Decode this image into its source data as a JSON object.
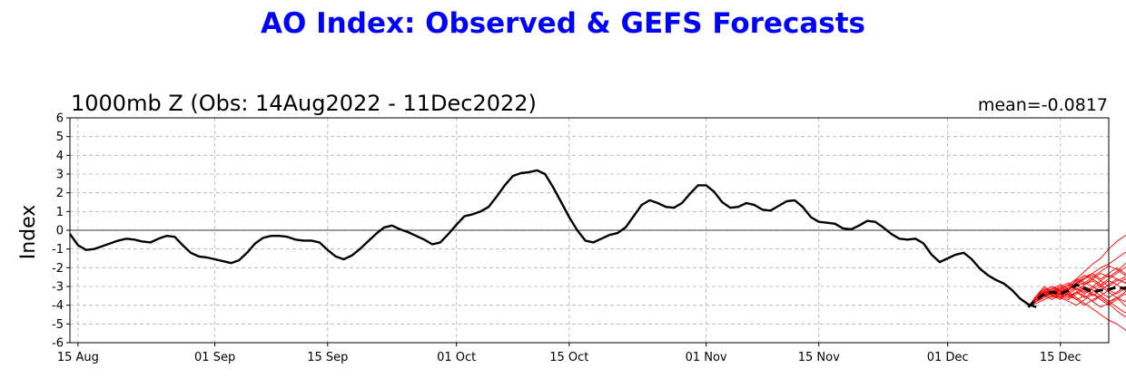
{
  "title": "AO Index: Observed & GEFS Forecasts",
  "chart_data": {
    "type": "line",
    "subtitle": "1000mb Z (Obs: 14Aug2022 - 11Dec2022)",
    "mean_label": "mean=-0.0817",
    "ylabel": "Index",
    "xlabel": "",
    "xlim": [
      "2022-08-14",
      "2022-12-21"
    ],
    "ylim": [
      -6,
      6
    ],
    "yticks": [
      6,
      5,
      4,
      3,
      2,
      1,
      0,
      -1,
      -2,
      -3,
      -4,
      -5,
      -6
    ],
    "xticks": [
      {
        "date": "2022-08-15",
        "label": "15 Aug"
      },
      {
        "date": "2022-09-01",
        "label": "01 Sep"
      },
      {
        "date": "2022-09-15",
        "label": "15 Sep"
      },
      {
        "date": "2022-10-01",
        "label": "01 Oct"
      },
      {
        "date": "2022-10-15",
        "label": "15 Oct"
      },
      {
        "date": "2022-11-01",
        "label": "01 Nov"
      },
      {
        "date": "2022-11-15",
        "label": "15 Nov"
      },
      {
        "date": "2022-12-01",
        "label": "01 Dec"
      },
      {
        "date": "2022-12-15",
        "label": "15 Dec"
      }
    ],
    "grid": true,
    "zero_line": true,
    "colors": {
      "observed": "#000000",
      "members": "#ff0000",
      "mean": "#000000",
      "title": "#0000ff"
    },
    "observed": {
      "start": "2022-08-14",
      "values": [
        -0.2,
        -0.8,
        -1.05,
        -1.0,
        -0.85,
        -0.7,
        -0.55,
        -0.45,
        -0.5,
        -0.6,
        -0.65,
        -0.45,
        -0.3,
        -0.35,
        -0.8,
        -1.2,
        -1.4,
        -1.45,
        -1.55,
        -1.65,
        -1.75,
        -1.6,
        -1.2,
        -0.7,
        -0.4,
        -0.3,
        -0.3,
        -0.35,
        -0.5,
        -0.55,
        -0.55,
        -0.65,
        -1.05,
        -1.4,
        -1.55,
        -1.35,
        -1.0,
        -0.6,
        -0.2,
        0.15,
        0.25,
        0.05,
        -0.1,
        -0.3,
        -0.5,
        -0.75,
        -0.65,
        -0.2,
        0.3,
        0.75,
        0.85,
        1.0,
        1.25,
        1.8,
        2.4,
        2.9,
        3.05,
        3.1,
        3.2,
        3.0,
        2.3,
        1.5,
        0.7,
        0.0,
        -0.55,
        -0.65,
        -0.45,
        -0.25,
        -0.15,
        0.15,
        0.75,
        1.35,
        1.6,
        1.45,
        1.25,
        1.2,
        1.45,
        1.95,
        2.4,
        2.4,
        2.05,
        1.5,
        1.2,
        1.25,
        1.45,
        1.35,
        1.1,
        1.05,
        1.3,
        1.55,
        1.6,
        1.25,
        0.7,
        0.45,
        0.4,
        0.35,
        0.1,
        0.05,
        0.25,
        0.5,
        0.45,
        0.15,
        -0.2,
        -0.45,
        -0.5,
        -0.45,
        -0.7,
        -1.3,
        -1.7,
        -1.5,
        -1.3,
        -1.2,
        -1.55,
        -2.05,
        -2.4,
        -2.65,
        -2.85,
        -3.2,
        -3.65,
        -3.95,
        -4.1
      ]
    },
    "forecast": {
      "start": "2022-12-11",
      "mean": [
        -4.1,
        -3.7,
        -3.4,
        -3.3,
        -3.4,
        -3.2,
        -2.9,
        -3.1,
        -3.3,
        -3.2,
        -3.15,
        -3.05,
        -3.1,
        -3.0,
        -2.85,
        -2.7,
        -2.4
      ],
      "members": [
        [
          -4.1,
          -3.5,
          -3.0,
          -3.3,
          -3.6,
          -3.2,
          -2.6,
          -2.2,
          -1.8,
          -1.5,
          -1.0,
          -0.6,
          -0.3,
          0.0,
          0.3,
          0.1,
          -0.5
        ],
        [
          -4.1,
          -3.8,
          -3.6,
          -3.2,
          -3.0,
          -3.3,
          -3.6,
          -3.9,
          -4.2,
          -4.5,
          -4.8,
          -5.0,
          -5.3,
          -5.6,
          -5.9,
          -5.7,
          -5.5
        ],
        [
          -4.1,
          -3.6,
          -3.2,
          -3.0,
          -3.3,
          -3.1,
          -2.8,
          -2.5,
          -2.3,
          -2.0,
          -1.8,
          -1.5,
          -1.2,
          -1.0,
          -0.7,
          -0.3,
          0.0
        ],
        [
          -4.1,
          -3.9,
          -3.7,
          -3.5,
          -3.6,
          -3.8,
          -4.0,
          -3.7,
          -3.4,
          -3.6,
          -3.9,
          -4.3,
          -4.6,
          -4.5,
          -4.9,
          -5.3,
          -5.6
        ],
        [
          -4.1,
          -3.6,
          -3.3,
          -3.1,
          -3.3,
          -3.0,
          -2.7,
          -2.9,
          -2.6,
          -2.3,
          -2.5,
          -2.2,
          -1.8,
          -1.5,
          -1.1,
          -0.8,
          -0.4
        ],
        [
          -4.1,
          -3.7,
          -3.5,
          -3.4,
          -3.2,
          -3.5,
          -3.3,
          -3.0,
          -3.2,
          -3.5,
          -3.8,
          -3.6,
          -4.0,
          -4.4,
          -4.2,
          -4.6,
          -4.9
        ],
        [
          -4.1,
          -3.6,
          -3.2,
          -3.5,
          -3.7,
          -3.3,
          -3.0,
          -2.8,
          -3.0,
          -2.7,
          -2.4,
          -2.6,
          -2.8,
          -2.5,
          -2.2,
          -1.9,
          -2.1
        ],
        [
          -4.1,
          -3.8,
          -3.5,
          -3.2,
          -3.4,
          -3.6,
          -3.3,
          -3.5,
          -3.8,
          -3.5,
          -3.2,
          -3.4,
          -3.1,
          -3.3,
          -3.6,
          -3.9,
          -4.1
        ],
        [
          -4.1,
          -3.5,
          -3.1,
          -3.3,
          -3.0,
          -2.8,
          -3.1,
          -3.4,
          -3.1,
          -2.9,
          -3.2,
          -2.9,
          -2.6,
          -2.9,
          -3.2,
          -2.8,
          -2.5
        ],
        [
          -4.1,
          -3.7,
          -3.4,
          -3.6,
          -3.3,
          -3.0,
          -2.7,
          -2.4,
          -2.6,
          -2.9,
          -2.6,
          -2.3,
          -2.0,
          -1.7,
          -1.4,
          -1.0,
          -0.7
        ],
        [
          -4.1,
          -3.8,
          -3.6,
          -3.3,
          -3.1,
          -3.4,
          -3.7,
          -3.5,
          -3.8,
          -4.1,
          -3.9,
          -3.6,
          -3.8,
          -3.5,
          -3.3,
          -3.6,
          -3.3
        ],
        [
          -4.1,
          -3.6,
          -3.3,
          -3.4,
          -3.1,
          -2.9,
          -2.6,
          -2.8,
          -2.5,
          -2.2,
          -1.9,
          -2.1,
          -2.4,
          -2.1,
          -1.8,
          -1.5,
          -1.2
        ],
        [
          -4.1,
          -3.7,
          -3.5,
          -3.2,
          -3.5,
          -3.7,
          -3.4,
          -3.1,
          -3.4,
          -3.7,
          -4.0,
          -3.7,
          -3.4,
          -3.7,
          -4.0,
          -4.3,
          -4.0
        ],
        [
          -4.1,
          -3.6,
          -3.4,
          -3.1,
          -2.9,
          -3.2,
          -2.9,
          -2.6,
          -2.4,
          -2.7,
          -3.0,
          -2.7,
          -2.5,
          -2.2,
          -2.5,
          -2.2,
          -1.9
        ],
        [
          -4.1,
          -3.8,
          -3.5,
          -3.7,
          -3.4,
          -3.6,
          -3.3,
          -3.6,
          -3.3,
          -3.0,
          -3.3,
          -3.6,
          -3.3,
          -3.0,
          -2.8,
          -3.1,
          -3.4
        ],
        [
          -4.1,
          -3.5,
          -3.2,
          -3.0,
          -3.2,
          -2.9,
          -3.2,
          -2.9,
          -2.7,
          -3.0,
          -2.7,
          -2.9,
          -3.2,
          -3.5,
          -3.2,
          -3.5,
          -3.1
        ],
        [
          -4.1,
          -3.7,
          -3.4,
          -3.2,
          -3.5,
          -3.2,
          -2.8,
          -2.6,
          -2.3,
          -2.6,
          -2.3,
          -2.0,
          -2.3,
          -2.6,
          -2.9,
          -2.6,
          -2.9
        ],
        [
          -4.1,
          -3.6,
          -3.3,
          -3.5,
          -3.2,
          -3.5,
          -3.7,
          -4.0,
          -3.7,
          -3.5,
          -3.8,
          -4.1,
          -4.4,
          -4.2,
          -3.9,
          -3.6,
          -3.8
        ],
        [
          -4.1,
          -3.8,
          -3.4,
          -3.2,
          -3.4,
          -3.1,
          -2.9,
          -3.2,
          -3.5,
          -3.2,
          -2.9,
          -2.6,
          -2.8,
          -3.1,
          -2.8,
          -2.4,
          -2.0
        ],
        [
          -4.1,
          -3.6,
          -3.2,
          -3.4,
          -3.6,
          -3.4,
          -3.1,
          -3.3,
          -3.0,
          -3.3,
          -3.6,
          -3.3,
          -3.0,
          -3.2,
          -3.5,
          -3.2,
          -3.6
        ]
      ]
    }
  }
}
